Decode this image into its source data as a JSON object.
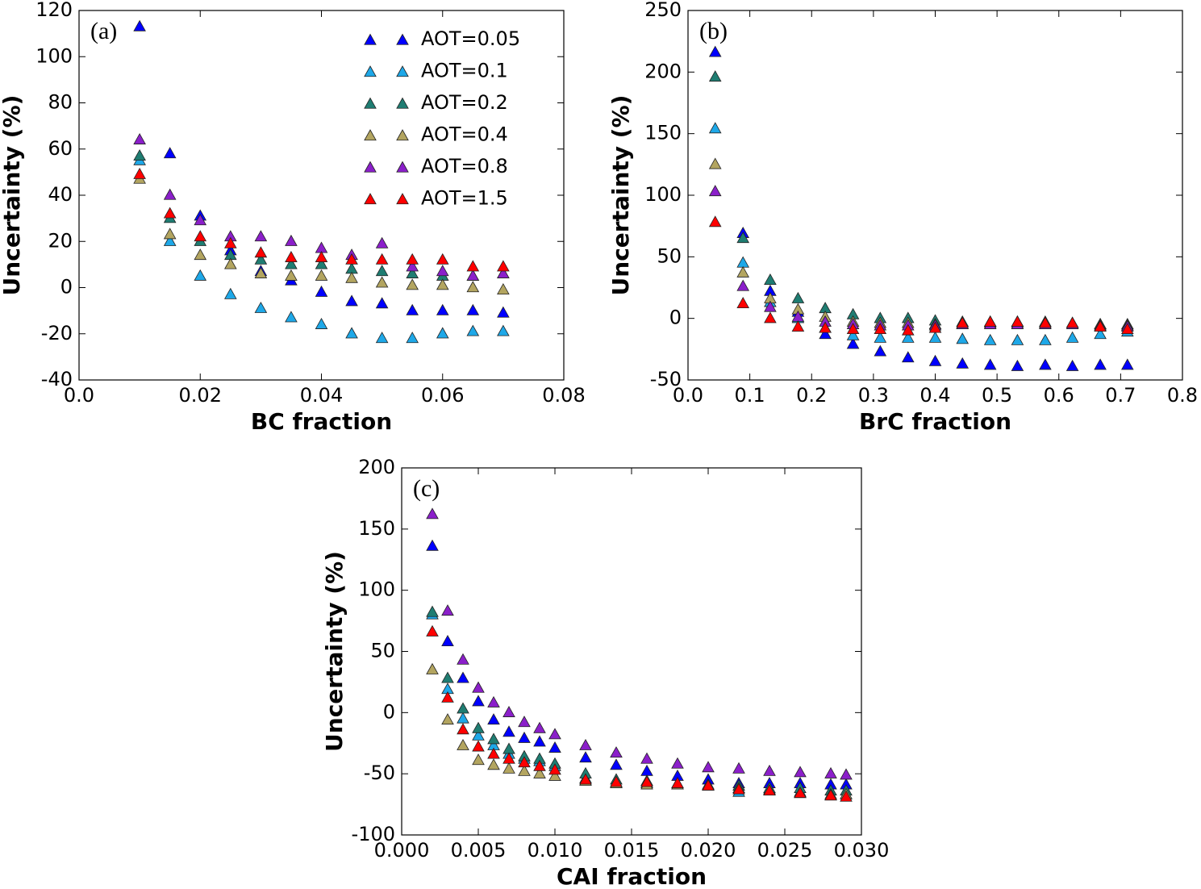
{
  "chart_data": [
    {
      "type": "scatter",
      "label": "(a)",
      "xlabel": "BC fraction",
      "ylabel": "Uncertainty (%)",
      "xlim": [
        0,
        0.08
      ],
      "ylim": [
        -40,
        120
      ],
      "xticks": [
        {
          "value": 0,
          "label": "0.0"
        },
        0.02,
        0.04,
        0.06,
        0.08
      ],
      "yticks": [
        -40,
        -20,
        0,
        20,
        40,
        60,
        80,
        100,
        120
      ],
      "legend": "upper right",
      "x": [
        0.01,
        0.015,
        0.02,
        0.025,
        0.03,
        0.035,
        0.04,
        0.045,
        0.05,
        0.055,
        0.06,
        0.065,
        0.07
      ],
      "series": [
        {
          "name": "AOT=0.05",
          "color": "#0000ff",
          "values": [
            113,
            58,
            31,
            16,
            7,
            3,
            -2,
            -6,
            -7,
            -10,
            -10,
            -10,
            -11
          ]
        },
        {
          "name": "AOT=0.1",
          "color": "#1ea8e8",
          "values": [
            55,
            20,
            5,
            -3,
            -9,
            -13,
            -16,
            -20,
            -22,
            -22,
            -20,
            -19,
            -19
          ]
        },
        {
          "name": "AOT=0.2",
          "color": "#1f7d72",
          "values": [
            57,
            30,
            20,
            14,
            12,
            10,
            10,
            8,
            7,
            6,
            5,
            5,
            6
          ]
        },
        {
          "name": "AOT=0.4",
          "color": "#b3a560",
          "values": [
            47,
            23,
            14,
            10,
            6,
            5,
            5,
            4,
            2,
            1,
            1,
            0,
            -1
          ]
        },
        {
          "name": "AOT=0.8",
          "color": "#8b1fca",
          "values": [
            64,
            40,
            29,
            22,
            22,
            20,
            17,
            14,
            19,
            9,
            7,
            5,
            6
          ]
        },
        {
          "name": "AOT=1.5",
          "color": "#ff0000",
          "values": [
            49,
            32,
            22,
            19,
            15,
            13,
            13,
            12,
            12,
            12,
            12,
            9,
            9
          ]
        }
      ]
    },
    {
      "type": "scatter",
      "label": "(b)",
      "xlabel": "BrC fraction",
      "ylabel": "Uncertainty (%)",
      "xlim": [
        0,
        0.8
      ],
      "ylim": [
        -50,
        250
      ],
      "xticks": [
        {
          "value": 0,
          "label": "0.0"
        },
        0.1,
        0.2,
        0.3,
        0.4,
        0.5,
        0.6,
        0.7,
        0.8
      ],
      "yticks": [
        -50,
        0,
        50,
        100,
        150,
        200,
        250
      ],
      "x": [
        0.044,
        0.089,
        0.133,
        0.178,
        0.222,
        0.267,
        0.311,
        0.356,
        0.4,
        0.444,
        0.489,
        0.533,
        0.578,
        0.622,
        0.667,
        0.711
      ],
      "series": [
        {
          "name": "AOT=0.05",
          "color": "#0000ff",
          "values": [
            216,
            69,
            22,
            5,
            -13,
            -21,
            -27,
            -32,
            -35,
            -37,
            -38,
            -39,
            -38,
            -39,
            -38,
            -38
          ]
        },
        {
          "name": "AOT=0.1",
          "color": "#1ea8e8",
          "values": [
            154,
            45,
            13,
            0,
            -8,
            -14,
            -16,
            -16,
            -16,
            -17,
            -18,
            -18,
            -18,
            -16,
            -13,
            -11
          ]
        },
        {
          "name": "AOT=0.2",
          "color": "#1f7d72",
          "values": [
            196,
            65,
            31,
            16,
            8,
            3,
            0,
            0,
            -2,
            -3,
            -3,
            -3,
            -3,
            -4,
            -5,
            -5
          ]
        },
        {
          "name": "AOT=0.4",
          "color": "#b3a560",
          "values": [
            125,
            37,
            16,
            7,
            1,
            -3,
            -4,
            -4,
            -5,
            -5,
            -4,
            -4,
            -4,
            -4,
            -5,
            -6
          ]
        },
        {
          "name": "AOT=0.8",
          "color": "#8b1fca",
          "values": [
            103,
            26,
            9,
            1,
            -3,
            -5,
            -6,
            -6,
            -6,
            -5,
            -5,
            -5,
            -5,
            -5,
            -6,
            -7
          ]
        },
        {
          "name": "AOT=1.5",
          "color": "#ff0000",
          "values": [
            78,
            12,
            0,
            -7,
            -8,
            -9,
            -9,
            -10,
            -8,
            -4,
            -3,
            -3,
            -4,
            -4,
            -7,
            -9
          ]
        }
      ]
    },
    {
      "type": "scatter",
      "label": "(c)",
      "xlabel": "CAI fraction",
      "ylabel": "Uncertainty (%)",
      "xlim": [
        0,
        0.03
      ],
      "ylim": [
        -100,
        200
      ],
      "xticks": [
        {
          "value": 0,
          "label": "0.000"
        },
        0.005,
        {
          "value": 0.01,
          "label": "0.010"
        },
        0.015,
        {
          "value": 0.02,
          "label": "0.020"
        },
        0.025,
        {
          "value": 0.03,
          "label": "0.030"
        }
      ],
      "yticks": [
        -100,
        -50,
        0,
        50,
        100,
        150,
        200
      ],
      "x": [
        0.002,
        0.003,
        0.004,
        0.005,
        0.006,
        0.007,
        0.008,
        0.009,
        0.01,
        0.012,
        0.014,
        0.016,
        0.018,
        0.02,
        0.022,
        0.024,
        0.026,
        0.028,
        0.029
      ],
      "series": [
        {
          "name": "AOT=0.05",
          "color": "#0000ff",
          "values": [
            136,
            58,
            28,
            9,
            -6,
            -16,
            -21,
            -24,
            -29,
            -37,
            -43,
            -48,
            -52,
            -55,
            -58,
            -58,
            -58,
            -59,
            -59
          ]
        },
        {
          "name": "AOT=0.1",
          "color": "#1ea8e8",
          "values": [
            80,
            19,
            -5,
            -19,
            -27,
            -34,
            -38,
            -40,
            -44,
            -54,
            -58,
            -58,
            -59,
            -60,
            -65,
            -63,
            -65,
            -68,
            -67
          ]
        },
        {
          "name": "AOT=0.2",
          "color": "#1f7d72",
          "values": [
            82,
            28,
            3,
            -13,
            -22,
            -30,
            -36,
            -38,
            -42,
            -50,
            -55,
            -56,
            -58,
            -59,
            -60,
            -62,
            -62,
            -64,
            -64
          ]
        },
        {
          "name": "AOT=0.4",
          "color": "#b3a560",
          "values": [
            35,
            -6,
            -27,
            -39,
            -43,
            -46,
            -48,
            -50,
            -52,
            -56,
            -58,
            -59,
            -59,
            -60,
            -62,
            -64,
            -66,
            -67,
            -67
          ]
        },
        {
          "name": "AOT=0.8",
          "color": "#8b1fca",
          "values": [
            162,
            83,
            43,
            20,
            8,
            0,
            -8,
            -13,
            -18,
            -27,
            -33,
            -38,
            -42,
            -45,
            -46,
            -48,
            -49,
            -50,
            -51
          ]
        },
        {
          "name": "AOT=1.5",
          "color": "#ff0000",
          "values": [
            66,
            12,
            -14,
            -28,
            -34,
            -38,
            -41,
            -44,
            -47,
            -55,
            -57,
            -57,
            -58,
            -60,
            -63,
            -64,
            -66,
            -68,
            -69
          ]
        }
      ]
    }
  ]
}
